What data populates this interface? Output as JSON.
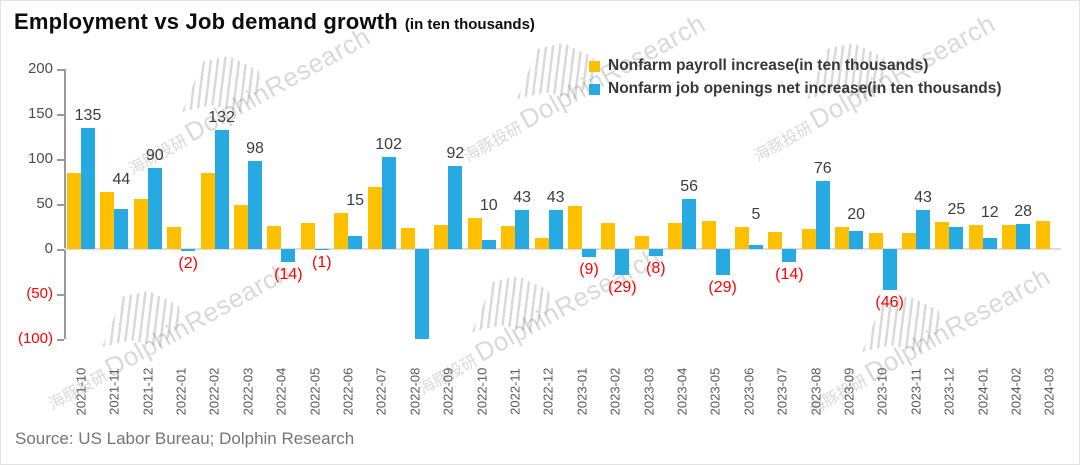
{
  "title": "Employment vs Job demand growth",
  "title_suffix": "(in ten thousands)",
  "source": "Source: US Labor Bureau; Dolphin Research",
  "watermark": {
    "cn": "海豚投研",
    "en": "DolphinResearch"
  },
  "colors": {
    "payroll": "#FFC000",
    "openings": "#27A9E1",
    "negative_label": "#FF0000",
    "value_label": "#3d3d3d",
    "axis_text": "#595959",
    "baseline": "#dcdcdc"
  },
  "legend": [
    {
      "label": "Nonfarm payroll increase(in ten thousands)",
      "color": "#FFC000"
    },
    {
      "label": "Nonfarm job openings net increase(in ten thousands)",
      "color": "#27A9E1"
    }
  ],
  "chart_data": {
    "type": "bar",
    "title": "Employment vs Job demand growth (in ten thousands)",
    "xlabel": "",
    "ylabel": "",
    "ylim": [
      -100,
      200
    ],
    "grid": false,
    "legend_position": "top-right",
    "x_labels_rotated": true,
    "categories": [
      "2021-10",
      "2021-11",
      "2021-12",
      "2022-01",
      "2022-02",
      "2022-03",
      "2022-04",
      "2022-05",
      "2022-06",
      "2022-07",
      "2022-08",
      "2022-09",
      "2022-10",
      "2022-11",
      "2022-12",
      "2023-01",
      "2023-02",
      "2023-03",
      "2023-04",
      "2023-05",
      "2023-06",
      "2023-07",
      "2023-08",
      "2023-09",
      "2023-10",
      "2023-11",
      "2023-12",
      "2024-01",
      "2024-02",
      "2024-03"
    ],
    "series": [
      {
        "name": "Nonfarm payroll increase(in ten thousands)",
        "color": "#FFC000",
        "values": [
          84,
          63,
          56,
          24,
          85,
          49,
          26,
          29,
          40,
          69,
          23,
          27,
          35,
          26,
          12,
          48,
          29,
          14,
          29,
          31,
          24,
          19,
          22,
          25,
          18,
          18,
          30,
          27,
          27,
          31
        ],
        "labels": [
          null,
          null,
          null,
          null,
          null,
          null,
          null,
          null,
          null,
          null,
          null,
          null,
          null,
          null,
          null,
          null,
          null,
          null,
          null,
          null,
          null,
          null,
          null,
          null,
          null,
          null,
          null,
          null,
          null,
          null
        ]
      },
      {
        "name": "Nonfarm job openings net increase(in ten thousands)",
        "color": "#27A9E1",
        "values": [
          135,
          44,
          90,
          -2,
          132,
          98,
          -14,
          -1,
          15,
          102,
          -100,
          92,
          10,
          43,
          43,
          -9,
          -29,
          -8,
          56,
          -29,
          5,
          -14,
          76,
          20,
          -46,
          43,
          25,
          12,
          28,
          null
        ],
        "labels": [
          "135",
          "44",
          "90",
          "(2)",
          "132",
          "98",
          "(14)",
          "(1)",
          "15",
          "102",
          null,
          "92",
          "10",
          "43",
          "43",
          "(9)",
          "(29)",
          "(8)",
          "56",
          "(29)",
          "5",
          "(14)",
          "76",
          "20",
          "(46)",
          "43",
          "25",
          "12",
          "28",
          null
        ]
      }
    ],
    "y_axis": {
      "tick_values": [
        200,
        150,
        100,
        50,
        0,
        -50,
        -100
      ],
      "tick_labels": [
        "200",
        "150",
        "100",
        "50",
        "0",
        "(50)",
        "(100)"
      ]
    }
  }
}
